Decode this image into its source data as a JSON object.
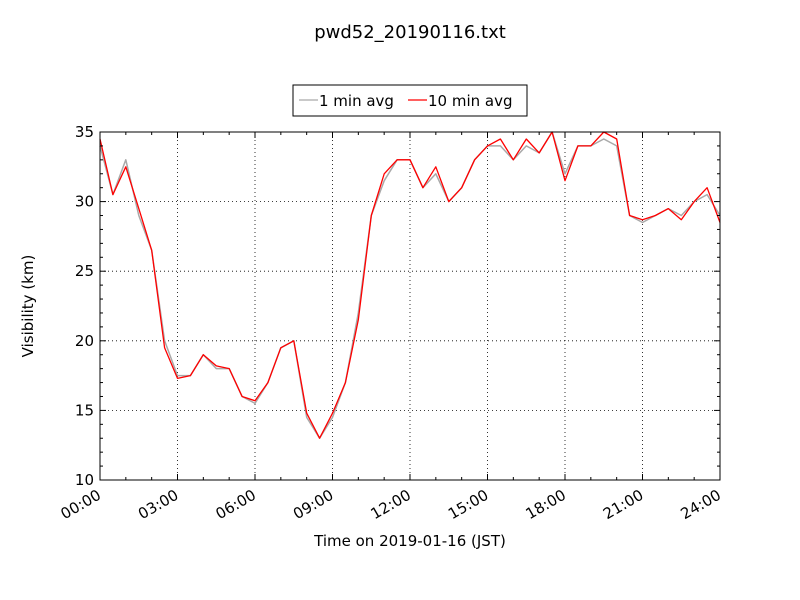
{
  "chart_data": {
    "type": "line",
    "title": "pwd52_20190116.txt",
    "xlabel": "Time on 2019-01-16 (JST)",
    "ylabel": "Visibility (km)",
    "xlim": [
      "00:00",
      "24:00"
    ],
    "ylim": [
      10,
      35
    ],
    "x_ticks": [
      "00:00",
      "03:00",
      "06:00",
      "09:00",
      "12:00",
      "15:00",
      "18:00",
      "21:00",
      "24:00"
    ],
    "y_ticks": [
      "10",
      "15",
      "20",
      "25",
      "30",
      "35"
    ],
    "grid": true,
    "legend_position": "top-center",
    "series": [
      {
        "name": "1 min avg",
        "color": "#a9a9a9",
        "x_hours": [
          0,
          0.5,
          1,
          1.5,
          2,
          2.5,
          3,
          3.5,
          4,
          4.5,
          5,
          5.5,
          6,
          6.5,
          7,
          7.5,
          8,
          8.5,
          9,
          9.5,
          10,
          10.5,
          11,
          11.5,
          12,
          12.5,
          13,
          13.5,
          14,
          14.5,
          15,
          15.5,
          16,
          16.5,
          17,
          17.5,
          18,
          18.5,
          19,
          19.5,
          20,
          20.5,
          21,
          21.5,
          22,
          22.5,
          23,
          23.5,
          24
        ],
        "values": [
          34,
          30.5,
          33,
          29,
          26.5,
          20,
          17.5,
          17.5,
          19,
          18,
          18,
          16,
          15.5,
          17,
          19.5,
          20,
          14.5,
          13,
          14.5,
          17,
          22,
          29,
          31.5,
          33,
          33,
          31,
          32,
          30,
          31,
          33,
          34,
          34,
          33,
          34,
          33.5,
          35,
          32,
          34,
          34,
          34.5,
          34,
          29,
          28.5,
          29,
          29.5,
          29,
          30,
          30.5,
          29
        ]
      },
      {
        "name": "10 min avg",
        "color": "#ff0000",
        "x_hours": [
          0,
          0.5,
          1,
          1.5,
          2,
          2.5,
          3,
          3.5,
          4,
          4.5,
          5,
          5.5,
          6,
          6.5,
          7,
          7.5,
          8,
          8.5,
          9,
          9.5,
          10,
          10.5,
          11,
          11.5,
          12,
          12.5,
          13,
          13.5,
          14,
          14.5,
          15,
          15.5,
          16,
          16.5,
          17,
          17.5,
          18,
          18.5,
          19,
          19.5,
          20,
          20.5,
          21,
          21.5,
          22,
          22.5,
          23,
          23.5,
          24
        ],
        "values": [
          34.5,
          30.5,
          32.5,
          29.5,
          26.5,
          19.5,
          17.3,
          17.5,
          19,
          18.2,
          18,
          16,
          15.7,
          17,
          19.5,
          20,
          14.8,
          13,
          14.8,
          17,
          21.5,
          29,
          32,
          33,
          33,
          31,
          32.5,
          30,
          31,
          33,
          34,
          34.5,
          33,
          34.5,
          33.5,
          35,
          31.5,
          34,
          34,
          35,
          34.5,
          29,
          28.7,
          29,
          29.5,
          28.7,
          30,
          31,
          28.5
        ]
      }
    ]
  }
}
